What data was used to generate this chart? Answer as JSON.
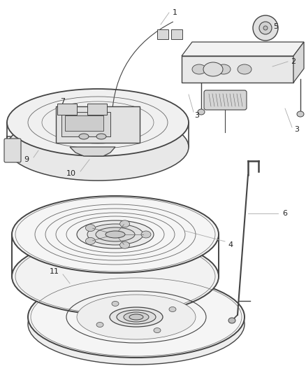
{
  "bg_color": "#ffffff",
  "line_color": "#444444",
  "label_color": "#333333",
  "fig_width": 4.38,
  "fig_height": 5.33,
  "dpi": 100
}
